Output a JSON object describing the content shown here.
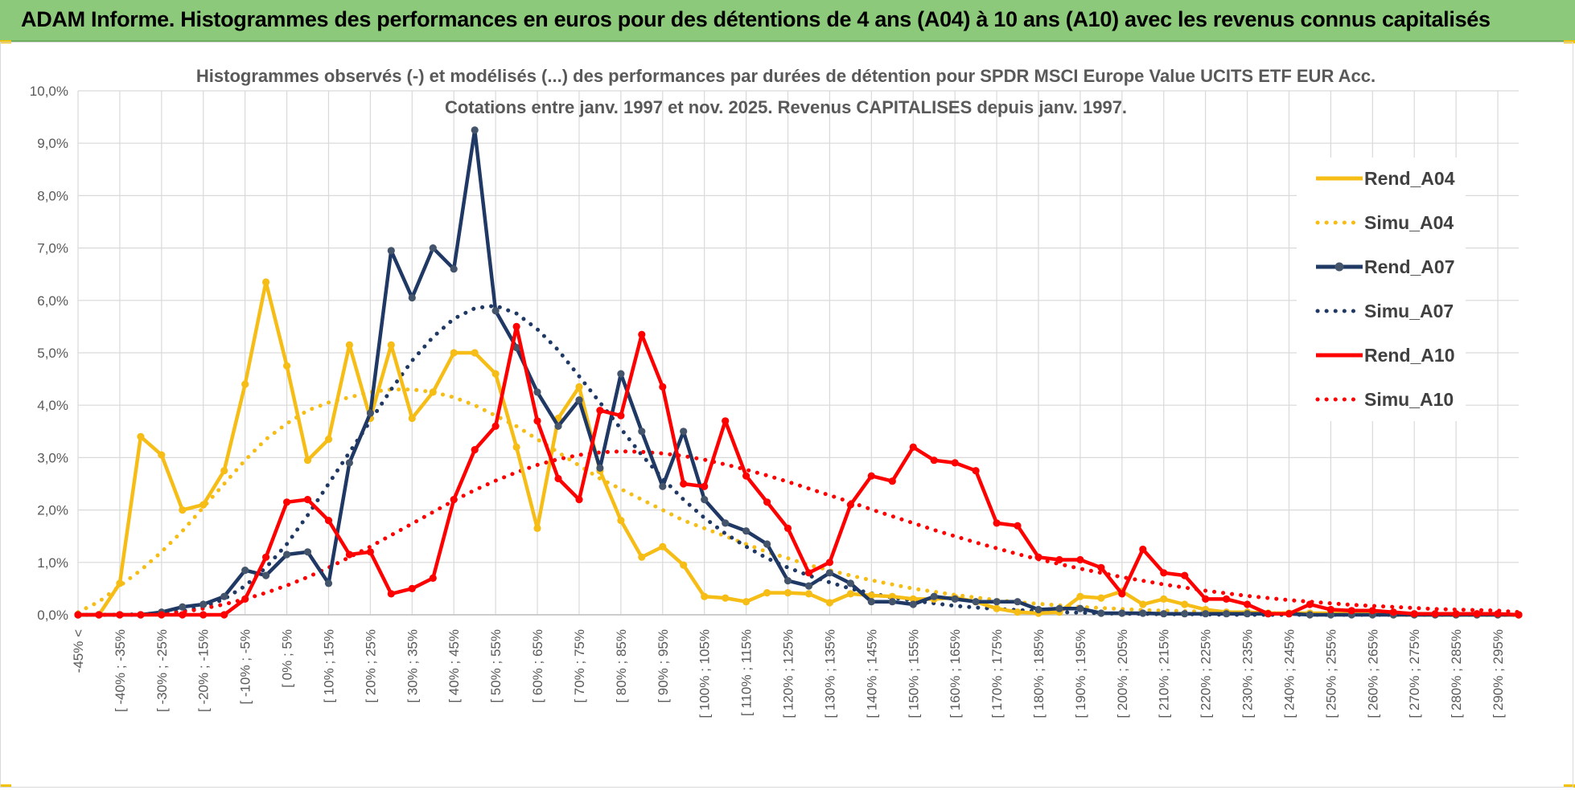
{
  "header": {
    "title": "ADAM Informe. Histogrammes des performances en euros pour des détentions de 4 ans (A04) à 10 ans (A10) avec les revenus connus capitalisés"
  },
  "chart_data": {
    "type": "line",
    "title": [
      "Histogrammes observés (-) et modélisés (...) des performances par durées de détention pour SPDR MSCI Europe Value UCITS ETF EUR Acc.",
      "Cotations entre janv. 1997 et nov. 2025. Revenus CAPITALISES depuis janv. 1997."
    ],
    "xlabel": "",
    "ylabel": "",
    "ylim": [
      0,
      10
    ],
    "ytick_labels": [
      "0,0%",
      "1,0%",
      "2,0%",
      "3,0%",
      "4,0%",
      "5,0%",
      "6,0%",
      "7,0%",
      "8,0%",
      "9,0%",
      "10,0%"
    ],
    "x_tick_labels": [
      "-45% <",
      "[ -40% ; -35%",
      "[ -30% ; -25%",
      "[ -20% ; -15%",
      "[ -10% ; -5%",
      "[ 0% ; 5%",
      "[ 10% ; 15%",
      "[ 20% ; 25%",
      "[ 30% ; 35%",
      "[ 40% ; 45%",
      "[ 50% ; 55%",
      "[ 60% ; 65%",
      "[ 70% ; 75%",
      "[ 80% ; 85%",
      "[ 90% ; 95%",
      "[ 100% ; 105%",
      "[ 110% ; 115%",
      "[ 120% ; 125%",
      "[ 130% ; 135%",
      "[ 140% ; 145%",
      "[ 150% ; 155%",
      "[ 160% ; 165%",
      "[ 170% ; 175%",
      "[ 180% ; 185%",
      "[ 190% ; 195%",
      "[ 200% ; 205%",
      "[ 210% ; 215%",
      "[ 220% ; 225%",
      "[ 230% ; 235%",
      "[ 240% ; 245%",
      "[ 250% ; 255%",
      "[ 260% ; 265%",
      "[ 270% ; 275%",
      "[ 280% ; 285%",
      "[ 290% ; 295%"
    ],
    "n_categories": 70,
    "series": [
      {
        "name": "Rend_A04",
        "color": "#f6bd16",
        "style": "solid",
        "values": [
          0,
          0,
          0.6,
          3.4,
          3.05,
          2.0,
          2.1,
          2.75,
          4.4,
          6.35,
          4.75,
          2.95,
          3.35,
          5.15,
          3.75,
          5.15,
          3.75,
          4.25,
          5.0,
          5.0,
          4.6,
          3.2,
          1.65,
          3.75,
          4.35,
          2.75,
          1.8,
          1.1,
          1.3,
          0.95,
          0.35,
          0.32,
          0.25,
          0.42,
          0.42,
          0.4,
          0.23,
          0.4,
          0.37,
          0.35,
          0.3,
          0.3,
          0.33,
          0.25,
          0.12,
          0.05,
          0.03,
          0.05,
          0.35,
          0.32,
          0.45,
          0.2,
          0.3,
          0.2,
          0.1,
          0.05,
          0.05,
          0.03,
          0.03,
          0.03,
          0.03,
          0.02,
          0.02,
          0,
          0,
          0,
          0,
          0,
          0,
          0
        ]
      },
      {
        "name": "Simu_A04",
        "color": "#f6bd16",
        "style": "dotted",
        "values": [
          0.05,
          0.25,
          0.55,
          0.85,
          1.2,
          1.6,
          2.05,
          2.5,
          2.95,
          3.35,
          3.65,
          3.9,
          4.05,
          4.15,
          4.25,
          4.3,
          4.3,
          4.25,
          4.15,
          4.0,
          3.8,
          3.6,
          3.35,
          3.1,
          2.85,
          2.6,
          2.4,
          2.2,
          2.0,
          1.8,
          1.65,
          1.5,
          1.35,
          1.2,
          1.08,
          0.95,
          0.85,
          0.75,
          0.66,
          0.58,
          0.5,
          0.44,
          0.38,
          0.33,
          0.28,
          0.24,
          0.21,
          0.18,
          0.15,
          0.13,
          0.11,
          0.09,
          0.08,
          0.07,
          0.06,
          0.05,
          0.04,
          0.03,
          0.03,
          0.02,
          0.02,
          0.01,
          0.01,
          0.01,
          0.01,
          0,
          0,
          0,
          0,
          0
        ]
      },
      {
        "name": "Rend_A07",
        "color": "#1f3864",
        "style": "solid",
        "values": [
          0,
          0,
          0,
          0,
          0.05,
          0.15,
          0.2,
          0.35,
          0.85,
          0.75,
          1.15,
          1.2,
          0.6,
          2.9,
          3.85,
          6.95,
          6.05,
          7.0,
          6.6,
          9.25,
          5.8,
          5.1,
          4.25,
          3.6,
          4.1,
          2.8,
          4.6,
          3.5,
          2.45,
          3.5,
          2.2,
          1.75,
          1.6,
          1.35,
          0.65,
          0.55,
          0.8,
          0.6,
          0.25,
          0.25,
          0.2,
          0.35,
          0.3,
          0.25,
          0.25,
          0.25,
          0.1,
          0.12,
          0.12,
          0.03,
          0.03,
          0.03,
          0.02,
          0.02,
          0.02,
          0.02,
          0.02,
          0.02,
          0.02,
          0,
          0,
          0,
          0,
          0,
          0,
          0,
          0,
          0,
          0,
          0
        ]
      },
      {
        "name": "Simu_A07",
        "color": "#1f3864",
        "style": "dotted",
        "values": [
          0,
          0,
          0,
          0.01,
          0.03,
          0.07,
          0.15,
          0.3,
          0.55,
          0.9,
          1.35,
          1.9,
          2.5,
          3.1,
          3.7,
          4.3,
          4.85,
          5.3,
          5.65,
          5.85,
          5.9,
          5.75,
          5.45,
          5.05,
          4.55,
          4.05,
          3.55,
          3.05,
          2.6,
          2.2,
          1.85,
          1.55,
          1.3,
          1.08,
          0.9,
          0.75,
          0.62,
          0.5,
          0.41,
          0.33,
          0.27,
          0.22,
          0.17,
          0.14,
          0.11,
          0.09,
          0.07,
          0.05,
          0.04,
          0.03,
          0.02,
          0.02,
          0.01,
          0.01,
          0.01,
          0,
          0,
          0,
          0,
          0,
          0,
          0,
          0,
          0,
          0,
          0,
          0,
          0,
          0,
          0
        ]
      },
      {
        "name": "Rend_A10",
        "color": "#ff0000",
        "style": "solid",
        "values": [
          0,
          0,
          0,
          0,
          0,
          0,
          0,
          0,
          0.3,
          1.1,
          2.15,
          2.2,
          1.8,
          1.15,
          1.2,
          0.4,
          0.5,
          0.7,
          2.2,
          3.15,
          3.6,
          5.5,
          3.7,
          2.6,
          2.2,
          3.9,
          3.8,
          5.35,
          4.35,
          2.5,
          2.45,
          3.7,
          2.65,
          2.15,
          1.65,
          0.8,
          1.0,
          2.1,
          2.65,
          2.55,
          3.2,
          2.95,
          2.9,
          2.75,
          1.75,
          1.7,
          1.1,
          1.05,
          1.05,
          0.9,
          0.4,
          1.25,
          0.8,
          0.75,
          0.3,
          0.3,
          0.2,
          0.02,
          0.02,
          0.2,
          0.1,
          0.08,
          0.08,
          0.05,
          0.02,
          0.02,
          0.02,
          0.02,
          0.02,
          0
        ]
      },
      {
        "name": "Simu_A10",
        "color": "#ff0000",
        "style": "dotted",
        "values": [
          0,
          0,
          0,
          0,
          0.02,
          0.05,
          0.12,
          0.2,
          0.3,
          0.42,
          0.56,
          0.72,
          0.9,
          1.1,
          1.3,
          1.52,
          1.74,
          1.96,
          2.18,
          2.38,
          2.56,
          2.72,
          2.86,
          2.97,
          3.05,
          3.1,
          3.12,
          3.11,
          3.08,
          3.03,
          2.96,
          2.87,
          2.77,
          2.66,
          2.54,
          2.41,
          2.28,
          2.15,
          2.01,
          1.88,
          1.75,
          1.62,
          1.5,
          1.38,
          1.27,
          1.16,
          1.06,
          0.97,
          0.88,
          0.8,
          0.72,
          0.65,
          0.58,
          0.52,
          0.46,
          0.41,
          0.36,
          0.32,
          0.28,
          0.25,
          0.22,
          0.19,
          0.17,
          0.15,
          0.13,
          0.11,
          0.1,
          0.09,
          0.08,
          0.05
        ]
      }
    ],
    "legend_position": "right",
    "grid": true
  }
}
